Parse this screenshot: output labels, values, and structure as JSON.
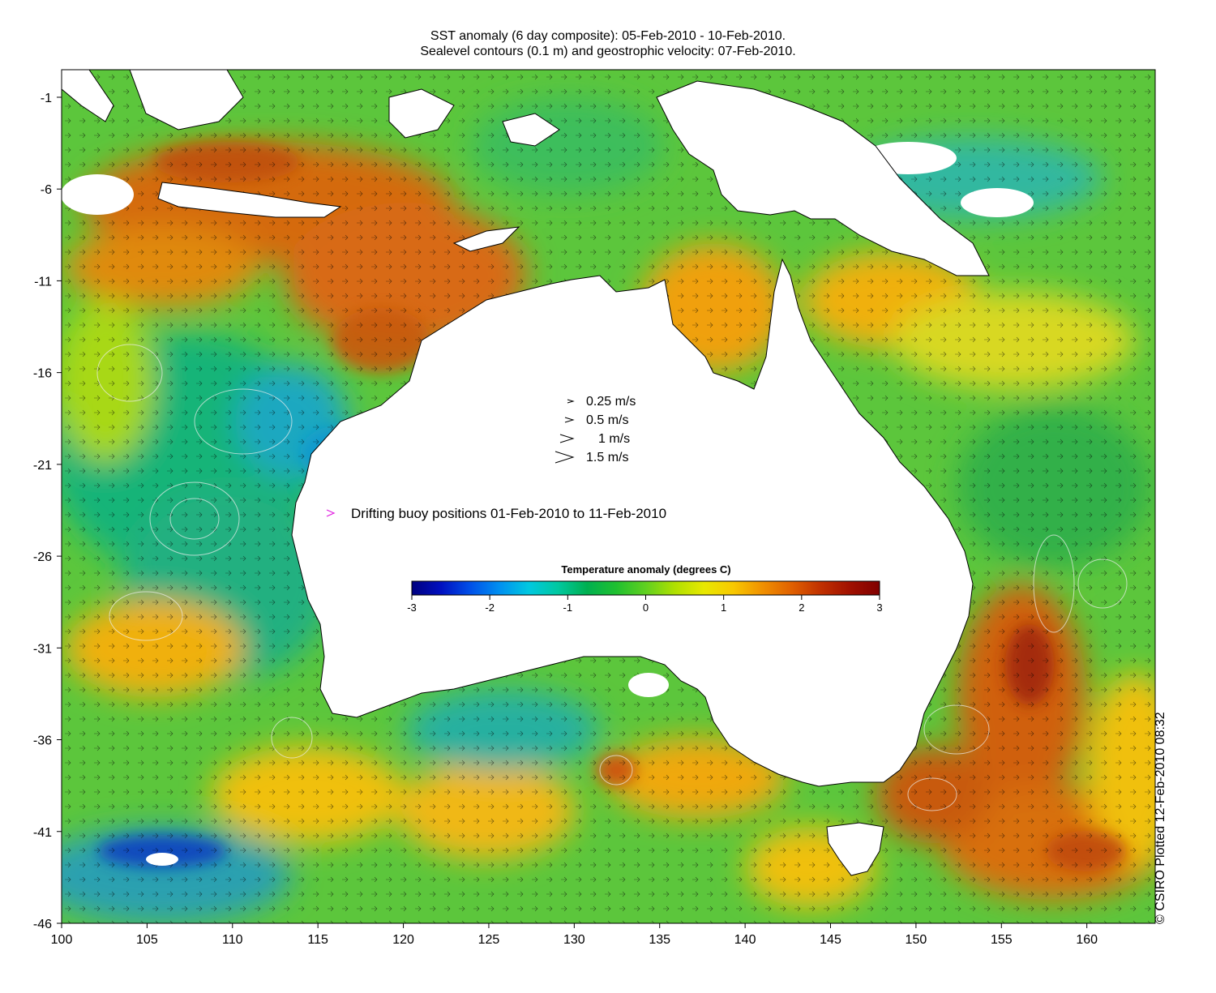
{
  "title_line1": "SST anomaly (6 day composite): 05-Feb-2010 - 10-Feb-2010.",
  "title_line2": "Sealevel contours (0.1 m) and geostrophic velocity: 07-Feb-2010.",
  "credit": "© CSIRO Plotted 12-Feb-2010 08:32",
  "axes": {
    "x_ticks": [
      "100",
      "105",
      "110",
      "115",
      "120",
      "125",
      "130",
      "135",
      "140",
      "145",
      "150",
      "155",
      "160"
    ],
    "y_ticks": [
      "-1",
      "-6",
      "-11",
      "-16",
      "-21",
      "-26",
      "-31",
      "-36",
      "-41",
      "-46"
    ],
    "lon_range": [
      100,
      164
    ],
    "lat_range": [
      -46,
      0.5
    ]
  },
  "velocity_legend": [
    {
      "speed": 0.25,
      "label": "0.25 m/s"
    },
    {
      "speed": 0.5,
      "label": "0.5 m/s"
    },
    {
      "speed": 1,
      "label": "1 m/s"
    },
    {
      "speed": 1.5,
      "label": "1.5 m/s"
    }
  ],
  "buoy_legend": {
    "label": "Drifting buoy positions 01-Feb-2010 to 11-Feb-2010",
    "color": "#e020e0"
  },
  "colorbar": {
    "title": "Temperature anomaly (degrees C)",
    "ticks": [
      "-3",
      "-2",
      "-1",
      "0",
      "1",
      "2",
      "3"
    ],
    "range": [
      -3,
      3
    ],
    "colors": [
      "#00007f",
      "#0010c0",
      "#0050e8",
      "#0090f0",
      "#00c8e0",
      "#00c8a0",
      "#00b050",
      "#20c030",
      "#60d020",
      "#b0e000",
      "#e8e800",
      "#f8c800",
      "#f09000",
      "#e06000",
      "#c03000",
      "#a01000",
      "#800000"
    ]
  },
  "region_colors": {
    "ocean_base": "#58c83a",
    "land": "#ffffff",
    "cloud": "#ffffff",
    "contour": "#e8e8e8",
    "coast": "#000000",
    "arrow": "#000000"
  }
}
